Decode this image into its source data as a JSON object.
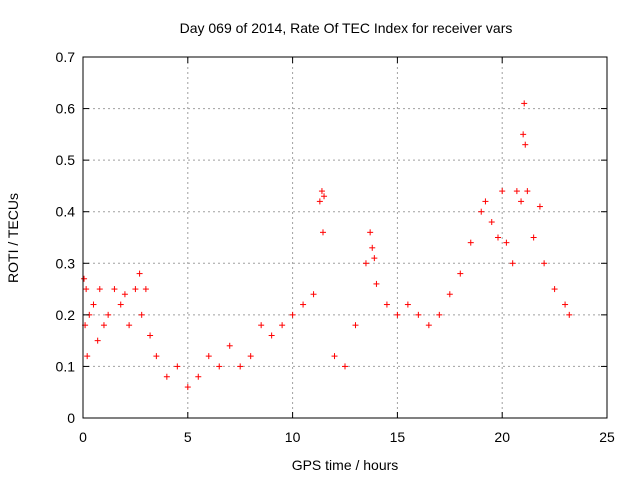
{
  "chart_data": {
    "type": "scatter",
    "title": "Day 069 of 2014, Rate Of TEC Index for receiver vars",
    "xlabel": "GPS time / hours",
    "ylabel": "ROTI / TECUs",
    "xlim": [
      0,
      25
    ],
    "ylim": [
      0,
      0.7
    ],
    "x_ticks": [
      0,
      5,
      10,
      15,
      20,
      25
    ],
    "y_ticks": [
      0,
      0.1,
      0.2,
      0.3,
      0.4,
      0.5,
      0.6,
      0.7
    ],
    "x_tick_labels": [
      "0",
      "5",
      "10",
      "15",
      "20",
      "25"
    ],
    "y_tick_labels": [
      "0",
      "0.1",
      "0.2",
      "0.3",
      "0.4",
      "0.5",
      "0.6",
      "0.7"
    ],
    "grid": true,
    "marker": "+",
    "marker_color": "#ff0000",
    "series": [
      {
        "name": "ROTI",
        "x": [
          0.05,
          0.1,
          0.15,
          0.2,
          0.3,
          0.5,
          0.7,
          0.8,
          1.0,
          1.2,
          1.5,
          1.8,
          2.0,
          2.2,
          2.5,
          2.7,
          2.8,
          3.0,
          3.2,
          3.5,
          4.0,
          4.5,
          5.0,
          5.5,
          6.0,
          6.5,
          7.0,
          7.5,
          8.0,
          8.5,
          9.0,
          9.5,
          10.0,
          10.5,
          11.0,
          11.3,
          11.4,
          11.45,
          11.5,
          12.0,
          12.5,
          13.0,
          13.5,
          13.7,
          13.8,
          13.9,
          14.0,
          14.5,
          15.0,
          15.5,
          16.0,
          16.5,
          17.0,
          17.5,
          18.0,
          18.5,
          19.0,
          19.2,
          19.5,
          19.8,
          20.0,
          20.2,
          20.5,
          20.7,
          20.9,
          21.0,
          21.05,
          21.1,
          21.2,
          21.5,
          21.8,
          22.0,
          22.5,
          23.0,
          23.2
        ],
        "y": [
          0.27,
          0.18,
          0.25,
          0.12,
          0.2,
          0.22,
          0.15,
          0.25,
          0.18,
          0.2,
          0.25,
          0.22,
          0.24,
          0.18,
          0.25,
          0.28,
          0.2,
          0.25,
          0.16,
          0.12,
          0.08,
          0.1,
          0.06,
          0.08,
          0.12,
          0.1,
          0.14,
          0.1,
          0.12,
          0.18,
          0.16,
          0.18,
          0.2,
          0.22,
          0.24,
          0.42,
          0.44,
          0.36,
          0.43,
          0.12,
          0.1,
          0.18,
          0.3,
          0.36,
          0.33,
          0.31,
          0.26,
          0.22,
          0.2,
          0.22,
          0.2,
          0.18,
          0.2,
          0.24,
          0.28,
          0.34,
          0.4,
          0.42,
          0.38,
          0.35,
          0.44,
          0.34,
          0.3,
          0.44,
          0.42,
          0.55,
          0.61,
          0.53,
          0.44,
          0.35,
          0.41,
          0.3,
          0.25,
          0.22,
          0.2
        ]
      }
    ]
  }
}
